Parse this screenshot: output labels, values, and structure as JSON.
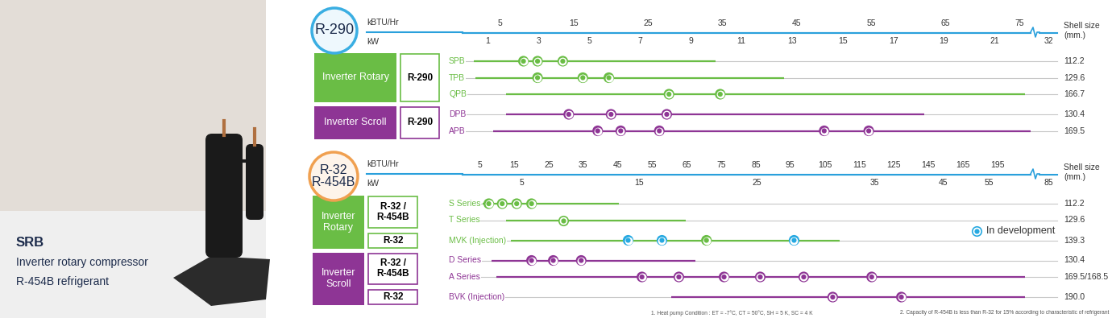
{
  "product": {
    "name": "SRB",
    "lines": [
      "Inverter rotary compressor",
      "R-454B refrigerant"
    ]
  },
  "in_development": {
    "label": "In development",
    "color": "#27a9e1"
  },
  "footnotes": [
    "1. Heat pump Condition : ET = -7°C, CT = 50°C, SH = 5 K, SC = 4 K",
    "2. Capacity of R-454B is less than R-32 for 15% according to characteristic of refrigerant"
  ],
  "chart_data": [
    {
      "type": "range",
      "title": "R-290",
      "color": "#3aaee2",
      "xlabel": "kBTU/Hr",
      "x2label": "kW",
      "xlim": [
        0,
        76.5
      ],
      "xticks": [
        5,
        15,
        25,
        35,
        45,
        55,
        65,
        75
      ],
      "x2ticks": [
        1,
        3,
        5,
        7,
        9,
        11,
        13,
        15,
        17,
        19,
        21
      ],
      "x2ticks_after_break": [
        32
      ],
      "shell_size_label": "Shell size\n(mm.)",
      "groups": [
        {
          "name": "Inverter Rotary",
          "color": "#6abd45",
          "refrigerants": [
            {
              "label": "R-290",
              "series": [
                {
                  "name": "SPB",
                  "range": [
                    1.5,
                    34.1
                  ],
                  "values": [
                    8.2,
                    10.1,
                    13.5
                  ],
                  "shell_size": "112.2"
                },
                {
                  "name": "TPB",
                  "range": [
                    1.7,
                    43.3
                  ],
                  "values": [
                    10.1,
                    16.2,
                    19.7
                  ],
                  "shell_size": "129.6"
                },
                {
                  "name": "QPB",
                  "range": [
                    5.9,
                    75.7
                  ],
                  "values": [
                    27.8,
                    34.7
                  ],
                  "shell_size": "166.7"
                }
              ]
            }
          ]
        },
        {
          "name": "Inverter Scroll",
          "color": "#8e3595",
          "refrigerants": [
            {
              "label": "R-290",
              "series": [
                {
                  "name": "DPB",
                  "range": [
                    5.9,
                    62.2
                  ],
                  "values": [
                    14.3,
                    20.0,
                    27.5
                  ],
                  "shell_size": "130.4"
                },
                {
                  "name": "APB",
                  "range": [
                    4.1,
                    76.5
                  ],
                  "values": [
                    18.2,
                    21.3,
                    26.5,
                    48.7,
                    54.7
                  ],
                  "shell_size": "169.5"
                }
              ]
            }
          ]
        }
      ]
    },
    {
      "type": "range",
      "title": "R-32\nR-454B",
      "color": "#f0a050",
      "xlabel": "kBTU/Hr",
      "x2label": "kW",
      "xlim": [
        0,
        224
      ],
      "xticks": [
        5,
        15,
        25,
        35,
        45,
        55,
        65,
        75,
        85,
        95,
        105,
        115,
        125,
        145,
        165,
        195
      ],
      "x2ticks": [
        5,
        15,
        25,
        35,
        45,
        55
      ],
      "x2ticks_after_break": [
        85
      ],
      "shell_size_label": "Shell size\n(mm.)",
      "groups": [
        {
          "name": "Inverter\nRotary",
          "color": "#6abd45",
          "refrigerants": [
            {
              "label": "R-32 /\nR-454B",
              "series": [
                {
                  "name": "S Series",
                  "range": [
                    5.9,
                    45.2
                  ],
                  "values": [
                    7.6,
                    11.5,
                    15.7,
                    20.0
                  ],
                  "shell_size": "112.2"
                },
                {
                  "name": "T Series",
                  "range": [
                    12.5,
                    64.6
                  ],
                  "values": [
                    29.3
                  ],
                  "shell_size": "129.6"
                }
              ]
            },
            {
              "label": "R-32",
              "series": [
                {
                  "name": "MVK (Injection)",
                  "range": [
                    14.1,
                    109.2
                  ],
                  "values": [
                    48.0,
                    57.8,
                    70.7,
                    96.1
                  ],
                  "colors": [
                    "#27a9e1",
                    "#27a9e1",
                    "#6abd45",
                    "#27a9e1"
                  ],
                  "shell_size": "139.3"
                }
              ]
            }
          ]
        },
        {
          "name": "Inverter\nScroll",
          "color": "#8e3595",
          "refrigerants": [
            {
              "label": "R-32 /\nR-454B",
              "series": [
                {
                  "name": "D Series",
                  "range": [
                    8.3,
                    67.6
                  ],
                  "values": [
                    20.0,
                    26.3,
                    34.4
                  ],
                  "shell_size": "130.4"
                },
                {
                  "name": "A Series",
                  "range": [
                    9.7,
                    219
                  ],
                  "values": [
                    52.0,
                    62.7,
                    75.8,
                    86.3,
                    98.9,
                    118.6
                  ],
                  "shell_size": "169.5/168.5"
                }
              ]
            },
            {
              "label": "R-32",
              "series": [
                {
                  "name": "BVK (Injection)",
                  "range": [
                    60.4,
                    219
                  ],
                  "values": [
                    107.3,
                    129.4
                  ],
                  "shell_size": "190.0"
                }
              ]
            }
          ]
        }
      ]
    }
  ]
}
